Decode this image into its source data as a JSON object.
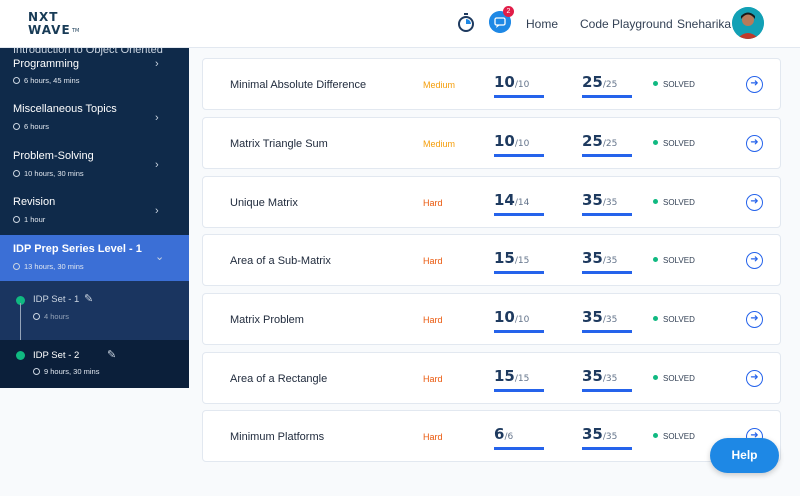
{
  "header": {
    "logo_line1": "NXT",
    "logo_line2": "WAVE",
    "logo_tm": "TM",
    "chat_badge": "2",
    "nav_home": "Home",
    "nav_code": "Code Playground",
    "user_name": "Sneharika",
    "icons": [
      "timer-icon",
      "chat-icon"
    ]
  },
  "sidebar": {
    "items": [
      {
        "title_partial": "Introduction to Object Oriented",
        "title": "Programming",
        "meta": "6 hours, 45 mins"
      },
      {
        "title": "Miscellaneous Topics",
        "meta": "6 hours"
      },
      {
        "title": "Problem-Solving",
        "meta": "10 hours, 30 mins"
      },
      {
        "title": "Revision",
        "meta": "1 hour"
      },
      {
        "title": "IDP Prep Series Level - 1",
        "meta": "13 hours, 30 mins"
      }
    ],
    "sub_items": [
      {
        "title": "IDP Set - 1",
        "meta": "4 hours"
      },
      {
        "title": "IDP Set - 2",
        "meta": "9 hours, 30 mins"
      }
    ]
  },
  "problems": [
    {
      "name": "Minimal Absolute Difference",
      "difficulty": "Medium",
      "s1": "10",
      "s1_total": "/10",
      "s1_frac": 1.0,
      "s2": "25",
      "s2_total": "/25",
      "s2_frac": 1.0,
      "status": "SOLVED"
    },
    {
      "name": "Matrix Triangle Sum",
      "difficulty": "Medium",
      "s1": "10",
      "s1_total": "/10",
      "s1_frac": 1.0,
      "s2": "25",
      "s2_total": "/25",
      "s2_frac": 1.0,
      "status": "SOLVED"
    },
    {
      "name": "Unique Matrix",
      "difficulty": "Hard",
      "s1": "14",
      "s1_total": "/14",
      "s1_frac": 1.0,
      "s2": "35",
      "s2_total": "/35",
      "s2_frac": 1.0,
      "status": "SOLVED"
    },
    {
      "name": "Area of a Sub-Matrix",
      "difficulty": "Hard",
      "s1": "15",
      "s1_total": "/15",
      "s1_frac": 1.0,
      "s2": "35",
      "s2_total": "/35",
      "s2_frac": 1.0,
      "status": "SOLVED"
    },
    {
      "name": "Matrix Problem",
      "difficulty": "Hard",
      "s1": "10",
      "s1_total": "/10",
      "s1_frac": 1.0,
      "s2": "35",
      "s2_total": "/35",
      "s2_frac": 1.0,
      "status": "SOLVED"
    },
    {
      "name": "Area of a Rectangle",
      "difficulty": "Hard",
      "s1": "15",
      "s1_total": "/15",
      "s1_frac": 1.0,
      "s2": "35",
      "s2_total": "/35",
      "s2_frac": 1.0,
      "status": "SOLVED"
    },
    {
      "name": "Minimum Platforms",
      "difficulty": "Hard",
      "s1": "6",
      "s1_total": "/6",
      "s1_frac": 1.0,
      "s2": "35",
      "s2_total": "/35",
      "s2_frac": 1.0,
      "status": "SOLVED"
    }
  ],
  "help_label": "Help",
  "colors": {
    "accent": "#2563eb",
    "sidebar_bg": "#0f2a4a",
    "active_item": "#3b6fd6",
    "solved": "#10b981",
    "medium": "#f59e0b",
    "hard": "#ea580c"
  }
}
